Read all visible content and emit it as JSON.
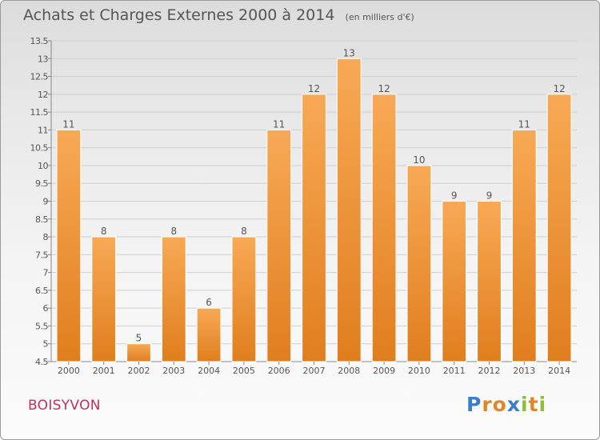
{
  "title": "Achats et Charges Externes 2000 à 2014",
  "subtitle": "(en milliers d'€)",
  "place": "BOISYVON",
  "logo": {
    "text": "Proxiti",
    "letter_colors": [
      "#3a7fc8",
      "#e0872a",
      "#e0872a",
      "#3a7fc8",
      "#8bbf3c",
      "#e0872a",
      "#8bbf3c"
    ]
  },
  "colors": {
    "bar_light": "#f8a955",
    "bar_dark": "#e07e1e",
    "bar_edge": "#ffffff",
    "text": "#555555",
    "grid": "#cfcfcf"
  },
  "chart_data": {
    "type": "bar",
    "categories": [
      "2000",
      "2001",
      "2002",
      "2003",
      "2004",
      "2005",
      "2006",
      "2007",
      "2008",
      "2009",
      "2010",
      "2011",
      "2012",
      "2013",
      "2014"
    ],
    "values": [
      11,
      8,
      5,
      8,
      6,
      8,
      11,
      12,
      13,
      12,
      10,
      9,
      9,
      11,
      12
    ],
    "data_labels": [
      "11",
      "8",
      "5",
      "8",
      "6",
      "8",
      "11",
      "12",
      "13",
      "12",
      "10",
      "9",
      "9",
      "11",
      "12"
    ],
    "ylim": [
      4.5,
      13.5
    ],
    "yticks": [
      4.5,
      5,
      5.5,
      6,
      6.5,
      7,
      7.5,
      8,
      8.5,
      9,
      9.5,
      10,
      10.5,
      11,
      11.5,
      12,
      12.5,
      13,
      13.5
    ],
    "ytick_labels": [
      "4.5",
      "5",
      "5.5",
      "6",
      "6.5",
      "7",
      "7.5",
      "8",
      "8.5",
      "9",
      "9.5",
      "10",
      "10.5",
      "11",
      "11.5",
      "12",
      "12.5",
      "13",
      "13.5"
    ],
    "grid": "horizontal",
    "legend": "none"
  }
}
